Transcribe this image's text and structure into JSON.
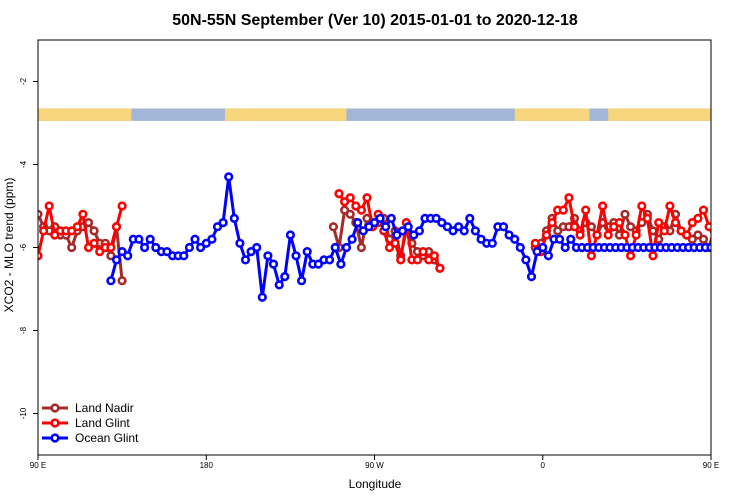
{
  "chart_data": {
    "type": "line",
    "title": "50N-55N September (Ver 10)   2015-01-01 to 2020-12-18",
    "xlabel": "Longitude",
    "ylabel": "XCO2 - MLO trend (ppm)",
    "xlim": [
      90,
      450
    ],
    "ylim": [
      -11,
      -1
    ],
    "x_ticks": [
      {
        "value": 90,
        "label": "90 E"
      },
      {
        "value": 180,
        "label": "180"
      },
      {
        "value": 270,
        "label": "90 W"
      },
      {
        "value": 360,
        "label": "0"
      },
      {
        "value": 450,
        "label": "90 E"
      },
      {
        "value": 540,
        "label": "180"
      }
    ],
    "y_ticks": [
      {
        "value": -2,
        "label": "-2"
      },
      {
        "value": -4,
        "label": "-4"
      },
      {
        "value": -6,
        "label": "-6"
      },
      {
        "value": -8,
        "label": "-8"
      },
      {
        "value": -10,
        "label": "-10"
      }
    ],
    "grid": false,
    "legend_position": "bottom-left",
    "land_strip": {
      "y_range": [
        -2.95,
        -2.65
      ],
      "ocean_color": "#a2b6d8",
      "land_color": "#f6d57c"
    },
    "series": [
      {
        "name": "Land Nadir",
        "color": "#a52a2a",
        "segments": [
          {
            "x": [
              90,
              93,
              96,
              99,
              102,
              105,
              108,
              111,
              114,
              117,
              120,
              123,
              126,
              129,
              132,
              135
            ],
            "y": [
              -5.2,
              -5.5,
              -5.6,
              -5.5,
              -5.7,
              -5.7,
              -6.0,
              -5.6,
              -5.5,
              -5.4,
              -5.6,
              -5.9,
              -5.9,
              -6.2,
              -5.5,
              -6.8
            ]
          },
          {
            "x": [
              248,
              251,
              254,
              257,
              260,
              263,
              266,
              269,
              272,
              275,
              278,
              281,
              284,
              287,
              290,
              293,
              296,
              299,
              302,
              305
            ],
            "y": [
              -5.5,
              -6.0,
              -5.1,
              -5.2,
              -5.4,
              -6.0,
              -5.3,
              -5.5,
              -5.4,
              -5.3,
              -5.8,
              -5.6,
              -6.2,
              -5.6,
              -5.9,
              -6.1,
              -6.2,
              -6.1,
              -6.3,
              -6.5
            ]
          },
          {
            "x": [
              356,
              359,
              362,
              365,
              368,
              371,
              374,
              377,
              380,
              383,
              386,
              389,
              392,
              395,
              398,
              401,
              404,
              407,
              410,
              413,
              416,
              419,
              422,
              425,
              428,
              431,
              434,
              437,
              440,
              443,
              446,
              449,
              452,
              455,
              458,
              461,
              464,
              467,
              470,
              473,
              476,
              479,
              482,
              485
            ],
            "y": [
              -6.0,
              -5.9,
              -5.6,
              -5.3,
              -5.6,
              -5.5,
              -5.5,
              -5.3,
              -5.6,
              -5.4,
              -5.5,
              -5.7,
              -5.4,
              -5.5,
              -5.4,
              -5.7,
              -5.2,
              -5.5,
              -5.6,
              -5.4,
              -5.2,
              -5.6,
              -5.8,
              -5.5,
              -5.6,
              -5.2,
              -5.6,
              -5.7,
              -5.8,
              -5.7,
              -5.8,
              -6.0,
              -5.5,
              -5.4,
              -5.6,
              -5.6,
              -5.9,
              -6.0,
              -5.6,
              -5.7,
              -6.2,
              -5.9,
              -5.6,
              -6.8
            ]
          }
        ]
      },
      {
        "name": "Land Glint",
        "color": "#ff0000",
        "segments": [
          {
            "x": [
              90,
              93,
              96,
              99,
              102,
              105,
              108,
              111,
              114,
              117,
              120,
              123,
              126,
              129,
              132,
              135
            ],
            "y": [
              -6.2,
              -5.6,
              -5.0,
              -5.7,
              -5.6,
              -5.6,
              -5.6,
              -5.5,
              -5.2,
              -6.0,
              -5.9,
              -6.1,
              -6.0,
              -6.0,
              -5.5,
              -5.0
            ]
          },
          {
            "x": [
              251,
              254,
              257,
              260,
              263,
              266,
              269,
              272,
              275,
              278,
              281,
              284,
              287,
              290,
              293,
              296,
              299,
              302,
              305
            ],
            "y": [
              -4.7,
              -4.9,
              -4.8,
              -5.0,
              -5.1,
              -4.8,
              -5.5,
              -5.2,
              -5.6,
              -6.0,
              -5.9,
              -6.3,
              -5.4,
              -6.3,
              -6.3,
              -6.1,
              -6.3,
              -6.2,
              -6.5
            ]
          },
          {
            "x": [
              356,
              359,
              362,
              365,
              368,
              371,
              374,
              377,
              380,
              383,
              386,
              389,
              392,
              395,
              398,
              401,
              404,
              407,
              410,
              413,
              416,
              419,
              422,
              425,
              428,
              431,
              434,
              437,
              440,
              443,
              446,
              449,
              452,
              455,
              458,
              461,
              464,
              467,
              470,
              473,
              476,
              479,
              482,
              485
            ],
            "y": [
              -5.9,
              -6.1,
              -5.7,
              -5.4,
              -5.1,
              -5.1,
              -4.8,
              -5.5,
              -5.7,
              -5.1,
              -6.2,
              -5.7,
              -5.0,
              -5.7,
              -5.5,
              -5.4,
              -5.7,
              -6.2,
              -5.7,
              -5.0,
              -5.3,
              -6.2,
              -5.4,
              -5.6,
              -5.0,
              -5.4,
              -5.6,
              -5.7,
              -5.4,
              -5.3,
              -5.1,
              -5.5,
              -5.8,
              -5.6,
              -6.0,
              -5.5,
              -5.6,
              -6.0,
              -6.0,
              -6.2,
              -5.8,
              -5.5,
              -5.0,
              -5.6
            ]
          }
        ]
      },
      {
        "name": "Ocean Glint",
        "color": "#0000ff",
        "segments": [
          {
            "x": [
              129,
              132,
              135,
              138,
              141,
              144,
              147,
              150,
              153,
              156,
              159,
              162,
              165,
              168,
              171,
              174,
              177,
              180,
              183,
              186,
              189,
              192,
              195,
              198,
              201,
              204,
              207,
              210,
              213,
              216,
              219,
              222,
              225,
              228,
              231,
              234,
              237,
              240,
              243,
              246,
              249,
              252,
              255,
              258,
              261,
              264,
              267,
              270,
              273,
              276,
              279,
              282,
              285,
              288,
              291,
              294,
              297,
              300,
              303,
              306,
              309,
              312,
              315,
              318,
              321,
              324,
              327,
              330,
              333,
              336,
              339,
              342,
              345,
              348,
              351,
              354,
              357,
              360,
              363,
              366,
              369,
              372,
              375,
              378,
              381,
              384,
              387,
              390,
              393,
              396,
              399,
              402,
              405,
              408,
              411,
              414,
              417,
              420,
              423,
              426,
              429,
              432,
              435,
              438,
              441,
              444,
              447,
              450,
              453,
              456,
              459,
              462,
              465,
              468,
              471,
              474,
              477,
              480,
              483,
              486,
              489,
              492,
              495,
              498
            ],
            "y": [
              -6.8,
              -6.3,
              -6.1,
              -6.2,
              -5.8,
              -5.8,
              -6.0,
              -5.8,
              -6.0,
              -6.1,
              -6.1,
              -6.2,
              -6.2,
              -6.2,
              -6.0,
              -5.8,
              -6.0,
              -5.9,
              -5.8,
              -5.5,
              -5.4,
              -4.3,
              -5.3,
              -5.9,
              -6.3,
              -6.1,
              -6.0,
              -7.2,
              -6.2,
              -6.4,
              -6.9,
              -6.7,
              -5.7,
              -6.2,
              -6.8,
              -6.1,
              -6.4,
              -6.4,
              -6.3,
              -6.3,
              -6.0,
              -6.4,
              -6.0,
              -5.8,
              -5.4,
              -5.6,
              -5.5,
              -5.4,
              -5.3,
              -5.5,
              -5.3,
              -5.7,
              -5.6,
              -5.5,
              -5.7,
              -5.6,
              -5.3,
              -5.3,
              -5.3,
              -5.4,
              -5.5,
              -5.6,
              -5.5,
              -5.6,
              -5.3,
              -5.6,
              -5.8,
              -5.9,
              -5.9,
              -5.5,
              -5.5,
              -5.7,
              -5.8,
              -6.0,
              -6.3,
              -6.7,
              -6.1,
              -6.0,
              -6.2,
              -5.8,
              -5.8,
              -6.0,
              -5.8,
              -6.0,
              -6.0,
              -6.0,
              -6.0,
              -6.0,
              -6.0,
              -6.0,
              -6.0,
              -6.0,
              -6.0,
              -6.0,
              -6.0,
              -6.0,
              -6.0,
              -6.0,
              -6.0,
              -6.0,
              -6.0,
              -6.0,
              -6.0,
              -6.0,
              -6.0,
              -6.0,
              -6.0,
              -6.0,
              -6.0,
              -6.0,
              -6.0,
              -6.0,
              -6.0,
              -6.0,
              -6.0,
              -6.0,
              -6.0,
              -6.0,
              -6.0,
              -6.0,
              -6.0,
              -6.0,
              -6.0,
              -6.0
            ]
          }
        ]
      }
    ]
  }
}
